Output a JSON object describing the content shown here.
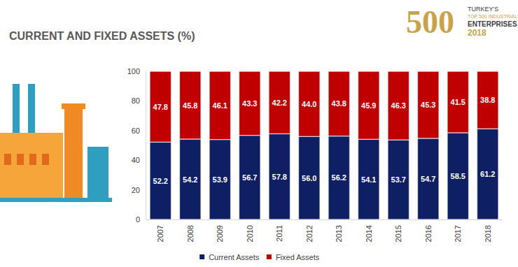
{
  "chart_data": {
    "type": "bar",
    "title": "CURRENT AND FIXED ASSETS (%)",
    "annotations": [
      "500",
      "TURKEY'S",
      "TOP 500 INDUSTRIAL",
      "ENTERPRISES",
      "2018"
    ],
    "categories": [
      "2007",
      "2008",
      "2009",
      "2010",
      "2011",
      "2012",
      "2013",
      "2014",
      "2015",
      "2016",
      "2017",
      "2018"
    ],
    "series": [
      {
        "name": "Current Assets",
        "color": "#0e1f63",
        "values": [
          52.2,
          54.2,
          53.9,
          56.7,
          57.8,
          56.0,
          56.2,
          54.1,
          53.7,
          54.7,
          58.5,
          61.2
        ],
        "value_labels": [
          "52.2",
          "54.2",
          "53.9",
          "56.7",
          "57.8",
          "56.0",
          "56.2",
          "54.1",
          "53.7",
          "54.7",
          "58.5",
          "61.2"
        ]
      },
      {
        "name": "Fixed Assets",
        "color": "#c00000",
        "values": [
          47.8,
          45.8,
          46.1,
          43.3,
          42.2,
          44.0,
          43.8,
          45.9,
          46.3,
          45.3,
          41.5,
          38.8
        ],
        "value_labels": [
          "47.8",
          "45.8",
          "46.1",
          "43.3",
          "42.2",
          "44.0",
          "43.8",
          "45.9",
          "46.3",
          "45.3",
          "41.5",
          "38.8"
        ]
      }
    ],
    "ylim": [
      0,
      100
    ],
    "yticks": [
      0,
      20,
      40,
      60,
      80,
      100
    ],
    "stacked": true,
    "data_labels": true,
    "grid": false,
    "legend": "bottom"
  }
}
